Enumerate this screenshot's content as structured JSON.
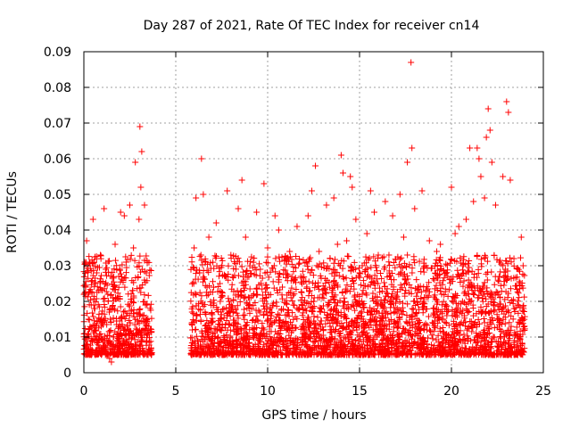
{
  "chart_data": {
    "type": "scatter",
    "title": "Day 287 of 2021, Rate Of TEC Index for receiver cn14",
    "xlabel": "GPS time / hours",
    "ylabel": "ROTI / TECUs",
    "xlim": [
      0,
      25
    ],
    "ylim": [
      0,
      0.09
    ],
    "xticks": [
      0,
      5,
      10,
      15,
      20,
      25
    ],
    "xtick_labels": [
      "0",
      "5",
      "10",
      "15",
      "20",
      "25"
    ],
    "yticks": [
      0,
      0.01,
      0.02,
      0.03,
      0.04,
      0.05,
      0.06,
      0.07,
      0.08,
      0.09
    ],
    "ytick_labels": [
      "0",
      "0.01",
      "0.02",
      "0.03",
      "0.04",
      "0.05",
      "0.06",
      "0.07",
      "0.08",
      "0.09"
    ],
    "grid": true,
    "marker": "plus",
    "color": "#ff0000",
    "data_gaps_hours": [
      [
        3.7,
        5.8
      ]
    ],
    "series": [
      {
        "name": "ROTI",
        "points": [
          [
            0.05,
            0.011
          ],
          [
            0.1,
            0.024
          ],
          [
            0.15,
            0.037
          ],
          [
            0.2,
            0.008
          ],
          [
            0.25,
            0.015
          ],
          [
            0.3,
            0.031
          ],
          [
            0.35,
            0.006
          ],
          [
            0.4,
            0.019
          ],
          [
            0.5,
            0.043
          ],
          [
            0.6,
            0.012
          ],
          [
            0.7,
            0.028
          ],
          [
            0.8,
            0.009
          ],
          [
            0.9,
            0.033
          ],
          [
            1.0,
            0.014
          ],
          [
            1.1,
            0.046
          ],
          [
            1.2,
            0.007
          ],
          [
            1.3,
            0.022
          ],
          [
            1.4,
            0.004
          ],
          [
            1.5,
            0.003
          ],
          [
            1.6,
            0.018
          ],
          [
            1.7,
            0.036
          ],
          [
            1.8,
            0.01
          ],
          [
            1.9,
            0.027
          ],
          [
            2.0,
            0.045
          ],
          [
            2.1,
            0.013
          ],
          [
            2.2,
            0.044
          ],
          [
            2.3,
            0.031
          ],
          [
            2.4,
            0.008
          ],
          [
            2.5,
            0.047
          ],
          [
            2.6,
            0.02
          ],
          [
            2.7,
            0.035
          ],
          [
            2.8,
            0.059
          ],
          [
            2.9,
            0.012
          ],
          [
            3.0,
            0.043
          ],
          [
            3.05,
            0.069
          ],
          [
            3.1,
            0.052
          ],
          [
            3.15,
            0.062
          ],
          [
            3.2,
            0.016
          ],
          [
            3.3,
            0.047
          ],
          [
            3.4,
            0.028
          ],
          [
            3.5,
            0.011
          ],
          [
            3.6,
            0.006
          ],
          [
            5.9,
            0.012
          ],
          [
            6.0,
            0.035
          ],
          [
            6.1,
            0.049
          ],
          [
            6.2,
            0.009
          ],
          [
            6.3,
            0.028
          ],
          [
            6.4,
            0.06
          ],
          [
            6.5,
            0.05
          ],
          [
            6.6,
            0.017
          ],
          [
            6.8,
            0.038
          ],
          [
            7.0,
            0.011
          ],
          [
            7.2,
            0.042
          ],
          [
            7.4,
            0.025
          ],
          [
            7.6,
            0.007
          ],
          [
            7.8,
            0.051
          ],
          [
            8.0,
            0.033
          ],
          [
            8.2,
            0.014
          ],
          [
            8.4,
            0.046
          ],
          [
            8.6,
            0.054
          ],
          [
            8.8,
            0.038
          ],
          [
            9.0,
            0.021
          ],
          [
            9.2,
            0.01
          ],
          [
            9.4,
            0.045
          ],
          [
            9.6,
            0.029
          ],
          [
            9.8,
            0.053
          ],
          [
            10.0,
            0.035
          ],
          [
            10.2,
            0.016
          ],
          [
            10.4,
            0.044
          ],
          [
            10.6,
            0.04
          ],
          [
            10.8,
            0.024
          ],
          [
            11.0,
            0.009
          ],
          [
            11.2,
            0.034
          ],
          [
            11.4,
            0.019
          ],
          [
            11.6,
            0.041
          ],
          [
            11.8,
            0.027
          ],
          [
            12.0,
            0.012
          ],
          [
            12.2,
            0.044
          ],
          [
            12.4,
            0.051
          ],
          [
            12.6,
            0.058
          ],
          [
            12.8,
            0.034
          ],
          [
            13.0,
            0.022
          ],
          [
            13.2,
            0.047
          ],
          [
            13.4,
            0.013
          ],
          [
            13.6,
            0.049
          ],
          [
            13.8,
            0.036
          ],
          [
            14.0,
            0.061
          ],
          [
            14.1,
            0.056
          ],
          [
            14.3,
            0.037
          ],
          [
            14.5,
            0.055
          ],
          [
            14.6,
            0.052
          ],
          [
            14.8,
            0.043
          ],
          [
            15.0,
            0.028
          ],
          [
            15.2,
            0.015
          ],
          [
            15.4,
            0.039
          ],
          [
            15.6,
            0.051
          ],
          [
            15.8,
            0.045
          ],
          [
            16.0,
            0.025
          ],
          [
            16.2,
            0.011
          ],
          [
            16.4,
            0.048
          ],
          [
            16.6,
            0.033
          ],
          [
            16.8,
            0.044
          ],
          [
            17.0,
            0.021
          ],
          [
            17.2,
            0.05
          ],
          [
            17.4,
            0.038
          ],
          [
            17.6,
            0.059
          ],
          [
            17.8,
            0.087
          ],
          [
            17.85,
            0.063
          ],
          [
            18.0,
            0.046
          ],
          [
            18.2,
            0.024
          ],
          [
            18.4,
            0.051
          ],
          [
            18.6,
            0.03
          ],
          [
            18.8,
            0.037
          ],
          [
            19.0,
            0.018
          ],
          [
            19.2,
            0.034
          ],
          [
            19.4,
            0.036
          ],
          [
            19.6,
            0.011
          ],
          [
            19.8,
            0.027
          ],
          [
            20.0,
            0.052
          ],
          [
            20.2,
            0.039
          ],
          [
            20.4,
            0.041
          ],
          [
            20.6,
            0.02
          ],
          [
            20.8,
            0.043
          ],
          [
            21.0,
            0.063
          ],
          [
            21.2,
            0.048
          ],
          [
            21.4,
            0.063
          ],
          [
            21.5,
            0.06
          ],
          [
            21.6,
            0.055
          ],
          [
            21.8,
            0.049
          ],
          [
            21.9,
            0.066
          ],
          [
            22.0,
            0.074
          ],
          [
            22.1,
            0.068
          ],
          [
            22.2,
            0.059
          ],
          [
            22.4,
            0.047
          ],
          [
            22.6,
            0.031
          ],
          [
            22.8,
            0.055
          ],
          [
            23.0,
            0.076
          ],
          [
            23.1,
            0.073
          ],
          [
            23.2,
            0.054
          ],
          [
            23.4,
            0.032
          ],
          [
            23.6,
            0.019
          ],
          [
            23.8,
            0.038
          ],
          [
            23.9,
            0.03
          ]
        ]
      }
    ]
  }
}
